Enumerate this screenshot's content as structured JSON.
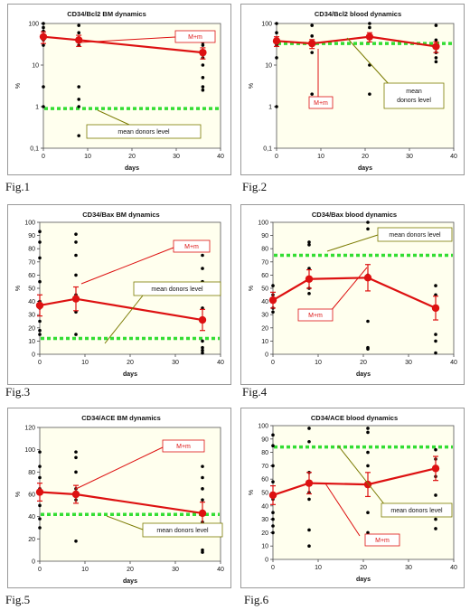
{
  "figure_labels": [
    "Fig.1",
    "Fig.2",
    "Fig.3",
    "Fig.4",
    "Fig.5",
    "Fig.6"
  ],
  "colors": {
    "mean_line": "#dd1111",
    "donor_line": "#33dd33",
    "points": "#000000",
    "plot_bg": "#ffffee",
    "chart_bg": "#ffffff",
    "callout_red": "#dd1111",
    "callout_olive": "#7a7a00"
  },
  "chart_data": [
    {
      "type": "line",
      "title": "CD34/Bcl2 BM dynamics",
      "xlabel": "days",
      "ylabel": "%",
      "yscale": "log",
      "ylim": [
        0.1,
        100
      ],
      "xlim": [
        0,
        40
      ],
      "xticks": [
        0,
        10,
        20,
        30,
        40
      ],
      "yticks": [
        0.1,
        1,
        10,
        100
      ],
      "ytick_labels": [
        "0,1",
        "1",
        "10",
        "100"
      ],
      "series": [
        {
          "name": "M+m",
          "x": [
            0,
            8,
            36
          ],
          "y": [
            48,
            40,
            20
          ],
          "err": [
            15,
            12,
            6
          ]
        }
      ],
      "scatter": {
        "x": [
          0,
          0,
          0,
          0,
          0,
          0,
          0,
          0,
          8,
          8,
          8,
          8,
          8,
          8,
          8,
          8,
          36,
          36,
          36,
          36,
          36,
          36,
          36,
          36,
          36
        ],
        "y": [
          100,
          80,
          65,
          50,
          40,
          30,
          3,
          1,
          90,
          60,
          45,
          30,
          3,
          1.5,
          1,
          0.2,
          50,
          35,
          30,
          22,
          15,
          10,
          5,
          3,
          2.5
        ]
      },
      "donor_level": 0.9,
      "annotations": [
        "M+m",
        "mean donors level"
      ]
    },
    {
      "type": "line",
      "title": "CD34/Bcl2  blood dynamics",
      "xlabel": "days",
      "ylabel": "%",
      "yscale": "log",
      "ylim": [
        0.1,
        100
      ],
      "xlim": [
        0,
        40
      ],
      "xticks": [
        0,
        10,
        20,
        30,
        40
      ],
      "yticks": [
        0.1,
        1,
        10,
        100
      ],
      "ytick_labels": [
        "0,1",
        "1",
        "10",
        "100"
      ],
      "series": [
        {
          "name": "M+m",
          "x": [
            0,
            8,
            21,
            36
          ],
          "y": [
            38,
            33,
            48,
            28
          ],
          "err": [
            10,
            8,
            12,
            8
          ]
        }
      ],
      "scatter": {
        "x": [
          0,
          0,
          0,
          0,
          0,
          0,
          8,
          8,
          8,
          8,
          8,
          8,
          21,
          21,
          21,
          21,
          21,
          36,
          36,
          36,
          36,
          36,
          36
        ],
        "y": [
          100,
          60,
          40,
          30,
          15,
          1,
          90,
          50,
          35,
          20,
          2,
          1,
          100,
          80,
          45,
          10,
          2,
          90,
          40,
          30,
          20,
          15,
          12
        ]
      },
      "donor_level": 33,
      "annotations": [
        "M+m",
        "mean donors level"
      ]
    },
    {
      "type": "line",
      "title": "CD34/Bax BM dynamics",
      "xlabel": "days",
      "ylabel": "%",
      "ylim": [
        0,
        100
      ],
      "xlim": [
        0,
        40
      ],
      "xticks": [
        0,
        10,
        20,
        30,
        40
      ],
      "yticks": [
        0,
        10,
        20,
        30,
        40,
        50,
        60,
        70,
        80,
        90,
        100
      ],
      "series": [
        {
          "name": "M+m",
          "x": [
            0,
            8,
            36
          ],
          "y": [
            37,
            42,
            26
          ],
          "err": [
            8,
            9,
            8
          ]
        }
      ],
      "scatter": {
        "x": [
          0,
          0,
          0,
          0,
          0,
          0,
          0,
          0,
          0,
          8,
          8,
          8,
          8,
          8,
          8,
          8,
          36,
          36,
          36,
          36,
          36,
          36,
          36,
          36
        ],
        "y": [
          93,
          85,
          73,
          55,
          40,
          35,
          25,
          18,
          15,
          91,
          85,
          75,
          60,
          45,
          32,
          15,
          75,
          65,
          55,
          35,
          10,
          5,
          3,
          1
        ]
      },
      "donor_level": 12,
      "annotations": [
        "M+m",
        "mean donors level"
      ]
    },
    {
      "type": "line",
      "title": "CD34/Bax  blood dynamics",
      "xlabel": "days",
      "ylabel": "%",
      "ylim": [
        0,
        100
      ],
      "xlim": [
        0,
        40
      ],
      "xticks": [
        0,
        10,
        20,
        30,
        40
      ],
      "yticks": [
        0,
        10,
        20,
        30,
        40,
        50,
        60,
        70,
        80,
        90,
        100
      ],
      "series": [
        {
          "name": "M+m",
          "x": [
            0,
            8,
            21,
            36
          ],
          "y": [
            41,
            57,
            58,
            35
          ],
          "err": [
            6,
            7,
            10,
            9
          ]
        }
      ],
      "scatter": {
        "x": [
          0,
          0,
          0,
          0,
          0,
          8,
          8,
          8,
          8,
          8,
          21,
          21,
          21,
          21,
          21,
          21,
          36,
          36,
          36,
          36,
          36,
          36
        ],
        "y": [
          52,
          45,
          40,
          35,
          32,
          85,
          83,
          65,
          50,
          46,
          100,
          95,
          60,
          25,
          5,
          4,
          52,
          45,
          35,
          15,
          10,
          1
        ]
      },
      "donor_level": 75,
      "annotations": [
        "mean donors level",
        "M+m"
      ]
    },
    {
      "type": "line",
      "title": "CD34/ACE BM dynamics",
      "xlabel": "days",
      "ylabel": "%",
      "ylim": [
        0,
        120
      ],
      "xlim": [
        0,
        40
      ],
      "xticks": [
        0,
        10,
        20,
        30,
        40
      ],
      "yticks": [
        0,
        20,
        40,
        60,
        80,
        100,
        120
      ],
      "series": [
        {
          "name": "M+m",
          "x": [
            0,
            8,
            36
          ],
          "y": [
            62,
            60,
            43
          ],
          "err": [
            8,
            8,
            10
          ]
        }
      ],
      "scatter": {
        "x": [
          0,
          0,
          0,
          0,
          0,
          0,
          0,
          8,
          8,
          8,
          8,
          8,
          8,
          36,
          36,
          36,
          36,
          36,
          36,
          36,
          36
        ],
        "y": [
          98,
          85,
          75,
          65,
          50,
          38,
          30,
          98,
          93,
          80,
          65,
          55,
          18,
          85,
          75,
          65,
          55,
          45,
          35,
          10,
          8
        ]
      },
      "donor_level": 42,
      "annotations": [
        "M+m",
        "mean donors level"
      ]
    },
    {
      "type": "line",
      "title": "CD34/ACE  blood dynamics",
      "xlabel": "days",
      "ylabel": "%",
      "ylim": [
        0,
        100
      ],
      "xlim": [
        0,
        40
      ],
      "xticks": [
        0,
        10,
        20,
        30,
        40
      ],
      "yticks": [
        0,
        10,
        20,
        30,
        40,
        50,
        60,
        70,
        80,
        90,
        100
      ],
      "series": [
        {
          "name": "M+m",
          "x": [
            0,
            8,
            21,
            36
          ],
          "y": [
            48,
            57,
            56,
            68
          ],
          "err": [
            7,
            8,
            9,
            9
          ]
        }
      ],
      "scatter": {
        "x": [
          0,
          0,
          0,
          0,
          0,
          0,
          0,
          0,
          0,
          8,
          8,
          8,
          8,
          8,
          8,
          8,
          8,
          21,
          21,
          21,
          21,
          21,
          21,
          21,
          21,
          36,
          36,
          36,
          36,
          36,
          36,
          36
        ],
        "y": [
          93,
          85,
          70,
          58,
          45,
          35,
          30,
          25,
          20,
          98,
          88,
          65,
          58,
          50,
          45,
          22,
          10,
          98,
          95,
          80,
          70,
          55,
          35,
          20,
          12,
          82,
          75,
          62,
          48,
          40,
          30,
          23
        ]
      },
      "donor_level": 84,
      "annotations": [
        "mean donors level",
        "M+m"
      ]
    }
  ]
}
